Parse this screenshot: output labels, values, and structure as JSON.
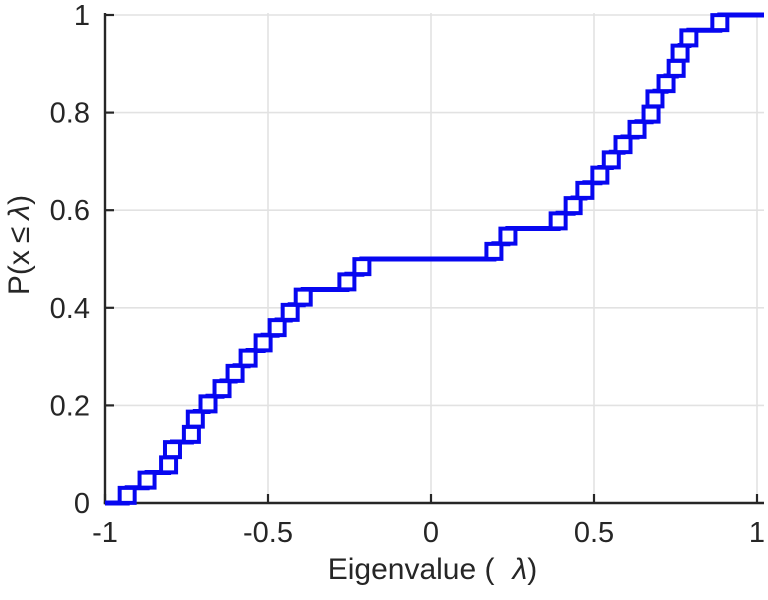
{
  "chart_data": {
    "type": "line",
    "subtype": "ecdf-stairs",
    "title": "",
    "xlabel": "Eigenvalue (λ)",
    "ylabel": "P(x ≤ λ)",
    "xlabel_parts": {
      "pre": "Eigenvalue (",
      "sym": "λ",
      "post": ")"
    },
    "ylabel_parts": {
      "pre": "P(x",
      "leq": "≤",
      "sym": "λ",
      "post": ")"
    },
    "xlim": [
      -1,
      1
    ],
    "ylim": [
      0,
      1
    ],
    "x_ticks": [
      -1,
      -0.5,
      0,
      0.5,
      1
    ],
    "x_tick_labels": [
      "-1",
      "-0.5",
      "0",
      "0.5",
      "1"
    ],
    "y_ticks": [
      0,
      0.2,
      0.4,
      0.6,
      0.8,
      1
    ],
    "y_tick_labels": [
      "0",
      "0.2",
      "0.4",
      "0.6",
      "0.8",
      "1"
    ],
    "grid": true,
    "legend": "none",
    "n_points": 32,
    "step_height": 0.03125,
    "eigenvalues": [
      -0.932,
      -0.871,
      -0.805,
      -0.793,
      -0.735,
      -0.723,
      -0.684,
      -0.641,
      -0.601,
      -0.561,
      -0.515,
      -0.472,
      -0.432,
      -0.392,
      -0.258,
      -0.212,
      0.193,
      0.236,
      0.39,
      0.436,
      0.472,
      0.518,
      0.553,
      0.589,
      0.632,
      0.675,
      0.687,
      0.721,
      0.752,
      0.764,
      0.791,
      0.886
    ],
    "cdf_values": [
      0.03125,
      0.0625,
      0.09375,
      0.125,
      0.15625,
      0.1875,
      0.21875,
      0.25,
      0.28125,
      0.3125,
      0.34375,
      0.375,
      0.40625,
      0.4375,
      0.46875,
      0.5,
      0.53125,
      0.5625,
      0.59375,
      0.625,
      0.65625,
      0.6875,
      0.71875,
      0.75,
      0.78125,
      0.8125,
      0.84375,
      0.875,
      0.90625,
      0.9375,
      0.96875,
      1.0
    ],
    "colors": {
      "line": "#0707f0",
      "marker_fill": "#ffffff",
      "grid": "#e2e2e2",
      "axis": "#262626",
      "text": "#262626",
      "background": "#ffffff"
    },
    "marker": "hollow-square"
  }
}
